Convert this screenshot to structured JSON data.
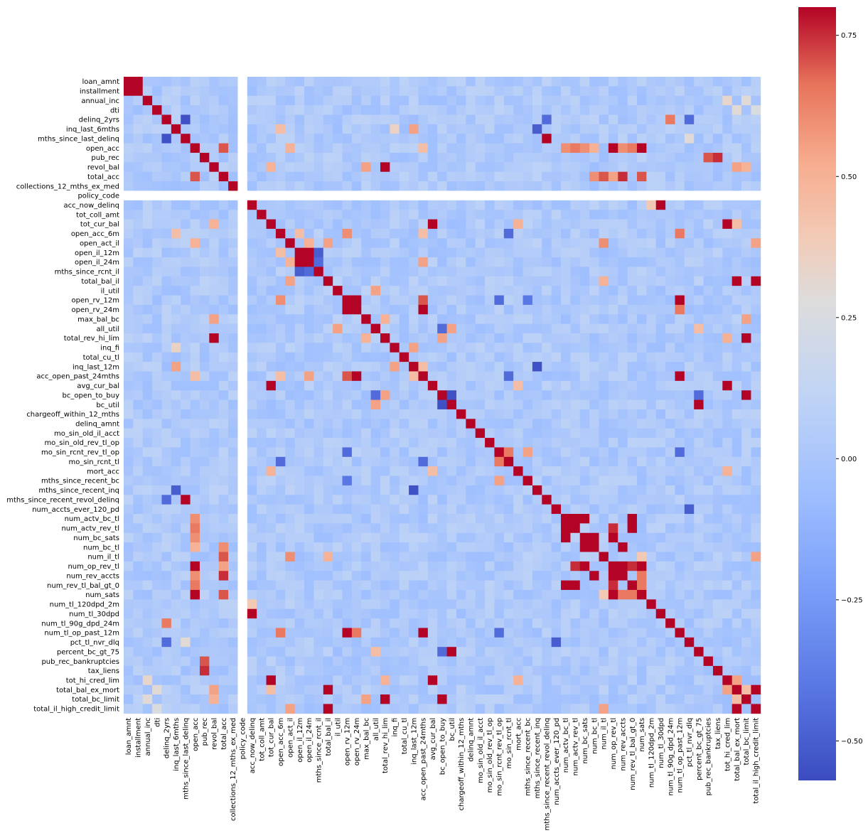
{
  "chart_data": {
    "type": "heatmap",
    "title": "",
    "xlabel": "",
    "ylabel": "",
    "colormap": "coolwarm",
    "colors": {
      "low": "#3b4cc0",
      "mid": "#dddddd",
      "high": "#b40426",
      "missing": "#ffffff"
    },
    "vmin": -0.57,
    "vmax": 0.8,
    "colorbar": {
      "ticks": [
        -0.5,
        -0.25,
        0.0,
        0.25,
        0.5,
        0.75
      ],
      "tick_labels": [
        "−0.50",
        "−0.25",
        "0.00",
        "0.25",
        "0.50",
        "0.75"
      ]
    },
    "variables": [
      "loan_amnt",
      "installment",
      "annual_inc",
      "dti",
      "delinq_2yrs",
      "inq_last_6mths",
      "mths_since_last_delinq",
      "open_acc",
      "pub_rec",
      "revol_bal",
      "total_acc",
      "collections_12_mths_ex_med",
      "policy_code",
      "acc_now_delinq",
      "tot_coll_amt",
      "tot_cur_bal",
      "open_acc_6m",
      "open_act_il",
      "open_il_12m",
      "open_il_24m",
      "mths_since_rcnt_il",
      "total_bal_il",
      "il_util",
      "open_rv_12m",
      "open_rv_24m",
      "max_bal_bc",
      "all_util",
      "total_rev_hi_lim",
      "inq_fi",
      "total_cu_tl",
      "inq_last_12m",
      "acc_open_past_24mths",
      "avg_cur_bal",
      "bc_open_to_buy",
      "bc_util",
      "chargeoff_within_12_mths",
      "delinq_amnt",
      "mo_sin_old_il_acct",
      "mo_sin_old_rev_tl_op",
      "mo_sin_rcnt_rev_tl_op",
      "mo_sin_rcnt_tl",
      "mort_acc",
      "mths_since_recent_bc",
      "mths_since_recent_inq",
      "mths_since_recent_revol_delinq",
      "num_accts_ever_120_pd",
      "num_actv_bc_tl",
      "num_actv_rev_tl",
      "num_bc_sats",
      "num_bc_tl",
      "num_il_tl",
      "num_op_rev_tl",
      "num_rev_accts",
      "num_rev_tl_bal_gt_0",
      "num_sats",
      "num_tl_120dpd_2m",
      "num_tl_30dpd",
      "num_tl_90g_dpd_24m",
      "num_tl_op_past_12m",
      "pct_tl_nvr_dlq",
      "percent_bc_gt_75",
      "pub_rec_bankruptcies",
      "tax_liens",
      "tot_hi_cred_lim",
      "total_bal_ex_mort",
      "total_bc_limit",
      "total_il_high_credit_limit"
    ],
    "null_variable": "policy_code",
    "strong_pairs": [
      [
        "loan_amnt",
        "installment",
        0.95
      ],
      [
        "annual_inc",
        "tot_hi_cred_lim",
        0.33
      ],
      [
        "annual_inc",
        "total_bc_limit",
        0.3
      ],
      [
        "dti",
        "total_bal_ex_mort",
        0.3
      ],
      [
        "dti",
        "total_il_high_credit_limit",
        0.25
      ],
      [
        "delinq_2yrs",
        "mths_since_last_delinq",
        -0.55
      ],
      [
        "delinq_2yrs",
        "num_tl_90g_dpd_24m",
        0.65
      ],
      [
        "delinq_2yrs",
        "pct_tl_nvr_dlq",
        -0.45
      ],
      [
        "delinq_2yrs",
        "mths_since_recent_revol_delinq",
        -0.45
      ],
      [
        "mths_since_last_delinq",
        "mths_since_recent_revol_delinq",
        0.85
      ],
      [
        "inq_last_6mths",
        "inq_last_12m",
        0.55
      ],
      [
        "inq_last_6mths",
        "mths_since_recent_inq",
        -0.5
      ],
      [
        "inq_last_6mths",
        "open_acc_6m",
        0.45
      ],
      [
        "inq_last_6mths",
        "inq_fi",
        0.35
      ],
      [
        "open_acc",
        "num_sats",
        0.99
      ],
      [
        "open_acc",
        "num_op_rev_tl",
        0.85
      ],
      [
        "open_acc",
        "num_actv_bc_tl",
        0.6
      ],
      [
        "open_acc",
        "num_actv_rev_tl",
        0.65
      ],
      [
        "open_acc",
        "num_rev_tl_bal_gt_0",
        0.65
      ],
      [
        "open_acc",
        "num_bc_sats",
        0.6
      ],
      [
        "open_acc",
        "total_acc",
        0.7
      ],
      [
        "open_acc",
        "num_rev_accts",
        0.6
      ],
      [
        "open_acc",
        "num_bc_tl",
        0.5
      ],
      [
        "open_acc",
        "acc_open_past_24mths",
        0.45
      ],
      [
        "open_acc",
        "open_act_il",
        0.5
      ],
      [
        "pub_rec",
        "pub_rec_bankruptcies",
        0.7
      ],
      [
        "pub_rec",
        "tax_liens",
        0.75
      ],
      [
        "revol_bal",
        "total_rev_hi_lim",
        0.85
      ],
      [
        "revol_bal",
        "max_bal_bc",
        0.55
      ],
      [
        "revol_bal",
        "total_bal_ex_mort",
        0.55
      ],
      [
        "revol_bal",
        "total_bc_limit",
        0.5
      ],
      [
        "revol_bal",
        "tot_cur_bal",
        0.5
      ],
      [
        "total_acc",
        "num_rev_accts",
        0.75
      ],
      [
        "total_acc",
        "num_il_tl",
        0.7
      ],
      [
        "total_acc",
        "num_bc_tl",
        0.6
      ],
      [
        "total_acc",
        "num_op_rev_tl",
        0.55
      ],
      [
        "total_acc",
        "num_sats",
        0.7
      ],
      [
        "acc_now_delinq",
        "num_tl_30dpd",
        0.85
      ],
      [
        "acc_now_delinq",
        "num_tl_120dpd_2m",
        0.4
      ],
      [
        "tot_cur_bal",
        "avg_cur_bal",
        0.82
      ],
      [
        "tot_cur_bal",
        "tot_hi_cred_lim",
        0.85
      ],
      [
        "tot_cur_bal",
        "mort_acc",
        0.5
      ],
      [
        "tot_cur_bal",
        "total_bal_ex_mort",
        0.45
      ],
      [
        "open_acc_6m",
        "open_rv_12m",
        0.6
      ],
      [
        "open_acc_6m",
        "num_tl_op_past_12m",
        0.65
      ],
      [
        "open_acc_6m",
        "acc_open_past_24mths",
        0.45
      ],
      [
        "open_acc_6m",
        "mo_sin_rcnt_tl",
        -0.45
      ],
      [
        "open_acc_6m",
        "open_il_12m",
        0.45
      ],
      [
        "open_act_il",
        "num_il_tl",
        0.6
      ],
      [
        "open_act_il",
        "total_bal_il",
        0.55
      ],
      [
        "open_act_il",
        "open_il_24m",
        0.5
      ],
      [
        "open_act_il",
        "total_il_high_credit_limit",
        0.55
      ],
      [
        "open_il_12m",
        "open_il_24m",
        0.8
      ],
      [
        "open_il_12m",
        "mths_since_rcnt_il",
        -0.5
      ],
      [
        "open_il_24m",
        "mths_since_rcnt_il",
        -0.45
      ],
      [
        "open_il_24m",
        "acc_open_past_24mths",
        0.55
      ],
      [
        "total_bal_il",
        "total_il_high_credit_limit",
        0.95
      ],
      [
        "total_bal_il",
        "total_bal_ex_mort",
        0.85
      ],
      [
        "total_bal_il",
        "num_il_tl",
        0.5
      ],
      [
        "il_util",
        "all_util",
        0.55
      ],
      [
        "open_rv_12m",
        "open_rv_24m",
        0.8
      ],
      [
        "open_rv_12m",
        "num_tl_op_past_12m",
        0.85
      ],
      [
        "open_rv_12m",
        "acc_open_past_24mths",
        0.7
      ],
      [
        "open_rv_24m",
        "acc_open_past_24mths",
        0.85
      ],
      [
        "open_rv_24m",
        "num_tl_op_past_12m",
        0.65
      ],
      [
        "open_rv_12m",
        "mo_sin_rcnt_rev_tl_op",
        -0.45
      ],
      [
        "open_rv_12m",
        "mths_since_recent_bc",
        -0.4
      ],
      [
        "max_bal_bc",
        "total_bc_limit",
        0.55
      ],
      [
        "max_bal_bc",
        "total_rev_hi_lim",
        0.5
      ],
      [
        "all_util",
        "bc_util",
        0.55
      ],
      [
        "all_util",
        "bc_open_to_buy",
        -0.45
      ],
      [
        "all_util",
        "percent_bc_gt_75",
        0.45
      ],
      [
        "total_rev_hi_lim",
        "total_bc_limit",
        0.8
      ],
      [
        "total_rev_hi_lim",
        "bc_open_to_buy",
        0.55
      ],
      [
        "total_rev_hi_lim",
        "tot_hi_cred_lim",
        0.5
      ],
      [
        "inq_fi",
        "inq_last_12m",
        0.55
      ],
      [
        "inq_last_12m",
        "mths_since_recent_inq",
        -0.55
      ],
      [
        "inq_last_12m",
        "acc_open_past_24mths",
        0.45
      ],
      [
        "acc_open_past_24mths",
        "num_tl_op_past_12m",
        0.8
      ],
      [
        "acc_open_past_24mths",
        "mo_sin_rcnt_tl",
        -0.45
      ],
      [
        "avg_cur_bal",
        "tot_hi_cred_lim",
        0.82
      ],
      [
        "avg_cur_bal",
        "mort_acc",
        0.45
      ],
      [
        "bc_open_to_buy",
        "total_bc_limit",
        0.85
      ],
      [
        "bc_open_to_buy",
        "bc_util",
        -0.55
      ],
      [
        "bc_open_to_buy",
        "percent_bc_gt_75",
        -0.45
      ],
      [
        "bc_util",
        "percent_bc_gt_75",
        0.85
      ],
      [
        "mo_sin_rcnt_rev_tl_op",
        "mo_sin_rcnt_tl",
        0.65
      ],
      [
        "mo_sin_rcnt_rev_tl_op",
        "mths_since_recent_bc",
        0.55
      ],
      [
        "mo_sin_rcnt_rev_tl_op",
        "num_tl_op_past_12m",
        -0.45
      ],
      [
        "num_accts_ever_120_pd",
        "pct_tl_nvr_dlq",
        -0.5
      ],
      [
        "num_actv_bc_tl",
        "num_actv_rev_tl",
        0.85
      ],
      [
        "num_actv_bc_tl",
        "num_bc_sats",
        0.85
      ],
      [
        "num_actv_bc_tl",
        "num_rev_tl_bal_gt_0",
        0.82
      ],
      [
        "num_actv_rev_tl",
        "num_rev_tl_bal_gt_0",
        0.98
      ],
      [
        "num_actv_rev_tl",
        "num_op_rev_tl",
        0.75
      ],
      [
        "num_bc_sats",
        "num_bc_tl",
        0.8
      ],
      [
        "num_bc_sats",
        "num_op_rev_tl",
        0.85
      ],
      [
        "num_bc_tl",
        "num_rev_accts",
        0.85
      ],
      [
        "num_op_rev_tl",
        "num_rev_accts",
        0.8
      ],
      [
        "num_op_rev_tl",
        "num_sats",
        0.85
      ],
      [
        "num_op_rev_tl",
        "num_rev_tl_bal_gt_0",
        0.75
      ],
      [
        "num_rev_tl_bal_gt_0",
        "num_sats",
        0.65
      ],
      [
        "num_rev_accts",
        "num_sats",
        0.65
      ],
      [
        "num_il_tl",
        "total_il_high_credit_limit",
        0.55
      ],
      [
        "num_il_tl",
        "num_sats",
        0.4
      ],
      [
        "tot_hi_cred_lim",
        "total_bal_ex_mort",
        0.55
      ],
      [
        "tot_hi_cred_lim",
        "mort_acc",
        0.5
      ],
      [
        "total_bal_ex_mort",
        "total_il_high_credit_limit",
        0.85
      ],
      [
        "total_bal_ex_mort",
        "total_bc_limit",
        0.45
      ],
      [
        "mths_since_last_delinq",
        "pct_tl_nvr_dlq",
        0.3
      ]
    ]
  }
}
